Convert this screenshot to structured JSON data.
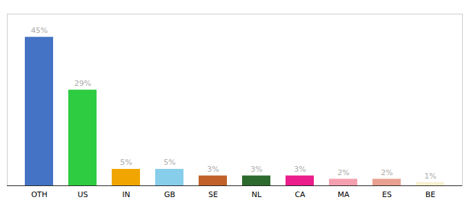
{
  "chart_data": {
    "type": "bar",
    "categories": [
      "OTH",
      "US",
      "IN",
      "GB",
      "SE",
      "NL",
      "CA",
      "MA",
      "ES",
      "BE"
    ],
    "values": [
      45,
      29,
      5,
      5,
      3,
      3,
      3,
      2,
      2,
      1
    ],
    "value_labels": [
      "45%",
      "29%",
      "5%",
      "5%",
      "3%",
      "3%",
      "3%",
      "2%",
      "2%",
      "1%"
    ],
    "colors": [
      "#4472c4",
      "#2ecc40",
      "#f0a500",
      "#87ceeb",
      "#c0622a",
      "#2d6a2d",
      "#e91e8c",
      "#f4a0b0",
      "#e8a090",
      "#f5f0d0"
    ],
    "ylim": [
      0,
      52
    ],
    "data_labels": true,
    "tick_labels": "x"
  }
}
